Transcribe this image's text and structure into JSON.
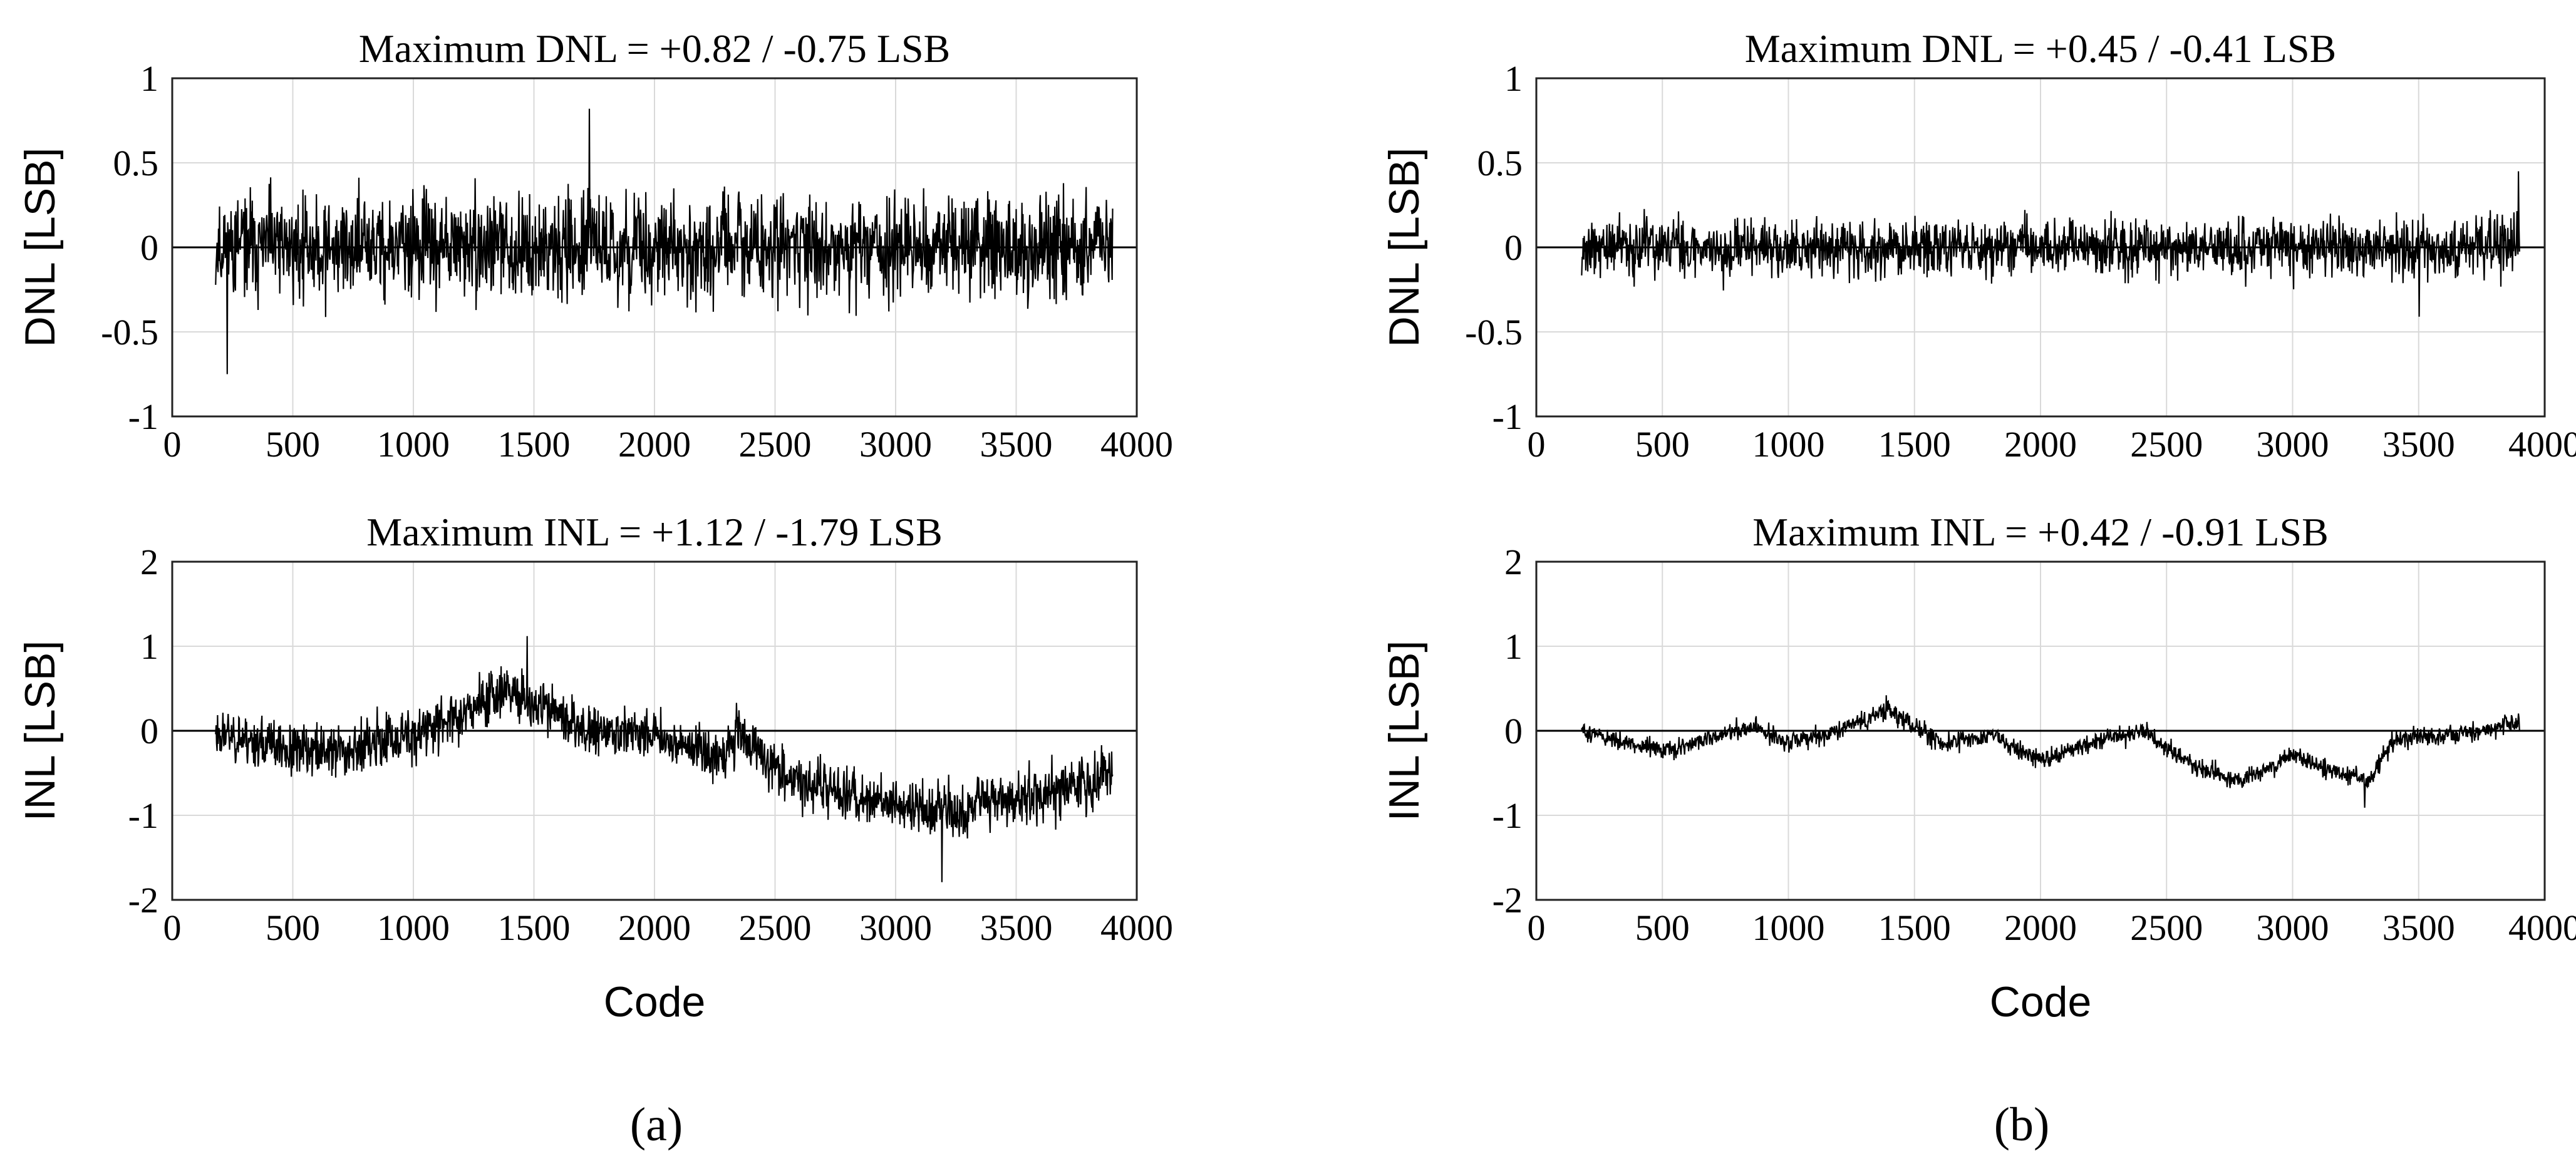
{
  "chart_data": [
    {
      "type": "line",
      "panel": "a",
      "title": "Maximum DNL = +0.82 / -0.75 LSB",
      "ylabel": "DNL [LSB]",
      "xlabel": "",
      "xlim": [
        0,
        4000
      ],
      "ylim": [
        -1,
        1
      ],
      "xticks": [
        0,
        500,
        1000,
        1500,
        2000,
        2500,
        3000,
        3500,
        4000
      ],
      "yticks": [
        -1,
        -0.5,
        0,
        0.5,
        1
      ],
      "xtick_labels": [
        "0",
        "500",
        "1000",
        "1500",
        "2000",
        "2500",
        "3000",
        "3500",
        "4000"
      ],
      "ytick_labels": [
        "-1",
        "-0.5",
        "0",
        "0.5",
        "1"
      ],
      "code_range": [
        180,
        3900
      ],
      "max": 0.82,
      "min": -0.75,
      "trend": [
        [
          180,
          0
        ],
        [
          3900,
          0
        ]
      ],
      "noise_amp": 0.27,
      "grid": true
    },
    {
      "type": "line",
      "panel": "a",
      "title": "Maximum INL = +1.12 / -1.79 LSB",
      "ylabel": "INL [LSB]",
      "xlabel": "Code",
      "xlim": [
        0,
        4000
      ],
      "ylim": [
        -2,
        2
      ],
      "xticks": [
        0,
        500,
        1000,
        1500,
        2000,
        2500,
        3000,
        3500,
        4000
      ],
      "yticks": [
        -2,
        -1,
        0,
        1,
        2
      ],
      "xtick_labels": [
        "0",
        "500",
        "1000",
        "1500",
        "2000",
        "2500",
        "3000",
        "3500",
        "4000"
      ],
      "ytick_labels": [
        "-2",
        "-1",
        "0",
        "1",
        "2"
      ],
      "code_range": [
        180,
        3900
      ],
      "max": 1.12,
      "min": -1.79,
      "trend": [
        [
          180,
          0.0
        ],
        [
          500,
          -0.25
        ],
        [
          800,
          -0.2
        ],
        [
          1050,
          0.0
        ],
        [
          1250,
          0.3
        ],
        [
          1380,
          0.5
        ],
        [
          1500,
          0.3
        ],
        [
          1750,
          0.0
        ],
        [
          2000,
          -0.05
        ],
        [
          2250,
          -0.3
        ],
        [
          2350,
          0.0
        ],
        [
          2500,
          -0.45
        ],
        [
          2750,
          -0.75
        ],
        [
          3000,
          -0.85
        ],
        [
          3250,
          -0.95
        ],
        [
          3500,
          -0.8
        ],
        [
          3750,
          -0.65
        ],
        [
          3900,
          -0.45
        ]
      ],
      "noise_amp": 0.28,
      "grid": true
    },
    {
      "type": "line",
      "panel": "b",
      "title": "Maximum DNL = +0.45 / -0.41 LSB",
      "ylabel": "DNL [LSB]",
      "xlabel": "",
      "xlim": [
        0,
        4000
      ],
      "ylim": [
        -1,
        1
      ],
      "xticks": [
        0,
        500,
        1000,
        1500,
        2000,
        2500,
        3000,
        3500,
        4000
      ],
      "yticks": [
        -1,
        -0.5,
        0,
        0.5,
        1
      ],
      "xtick_labels": [
        "0",
        "500",
        "1000",
        "1500",
        "2000",
        "2500",
        "3000",
        "3500",
        "4000"
      ],
      "ytick_labels": [
        "-1",
        "-0.5",
        "0",
        "0.5",
        "1"
      ],
      "code_range": [
        180,
        3900
      ],
      "max": 0.45,
      "min": -0.41,
      "trend": [
        [
          180,
          0
        ],
        [
          3900,
          0
        ]
      ],
      "noise_amp": 0.15,
      "grid": true
    },
    {
      "type": "line",
      "panel": "b",
      "title": "Maximum INL = +0.42 / -0.91 LSB",
      "ylabel": "INL [LSB]",
      "xlabel": "Code",
      "xlim": [
        0,
        4000
      ],
      "ylim": [
        -2,
        2
      ],
      "xticks": [
        0,
        500,
        1000,
        1500,
        2000,
        2500,
        3000,
        3500,
        4000
      ],
      "yticks": [
        -2,
        -1,
        0,
        1,
        2
      ],
      "xtick_labels": [
        "0",
        "500",
        "1000",
        "1500",
        "2000",
        "2500",
        "3000",
        "3500",
        "4000"
      ],
      "ytick_labels": [
        "-2",
        "-1",
        "0",
        "1",
        "2"
      ],
      "code_range": [
        180,
        3900
      ],
      "max": 0.42,
      "min": -0.91,
      "trend": [
        [
          180,
          0.0
        ],
        [
          500,
          -0.25
        ],
        [
          850,
          0.05
        ],
        [
          1000,
          -0.15
        ],
        [
          1200,
          0.0
        ],
        [
          1400,
          0.25
        ],
        [
          1600,
          -0.15
        ],
        [
          1800,
          -0.05
        ],
        [
          2000,
          -0.35
        ],
        [
          2200,
          -0.15
        ],
        [
          2400,
          0.0
        ],
        [
          2600,
          -0.4
        ],
        [
          2800,
          -0.6
        ],
        [
          3000,
          -0.3
        ],
        [
          3200,
          -0.5
        ],
        [
          3300,
          -0.6
        ],
        [
          3400,
          -0.1
        ],
        [
          3650,
          -0.05
        ],
        [
          3900,
          0.1
        ]
      ],
      "noise_amp": 0.1,
      "grid": true
    }
  ],
  "captions": {
    "a": "(a)",
    "b": "(b)"
  }
}
